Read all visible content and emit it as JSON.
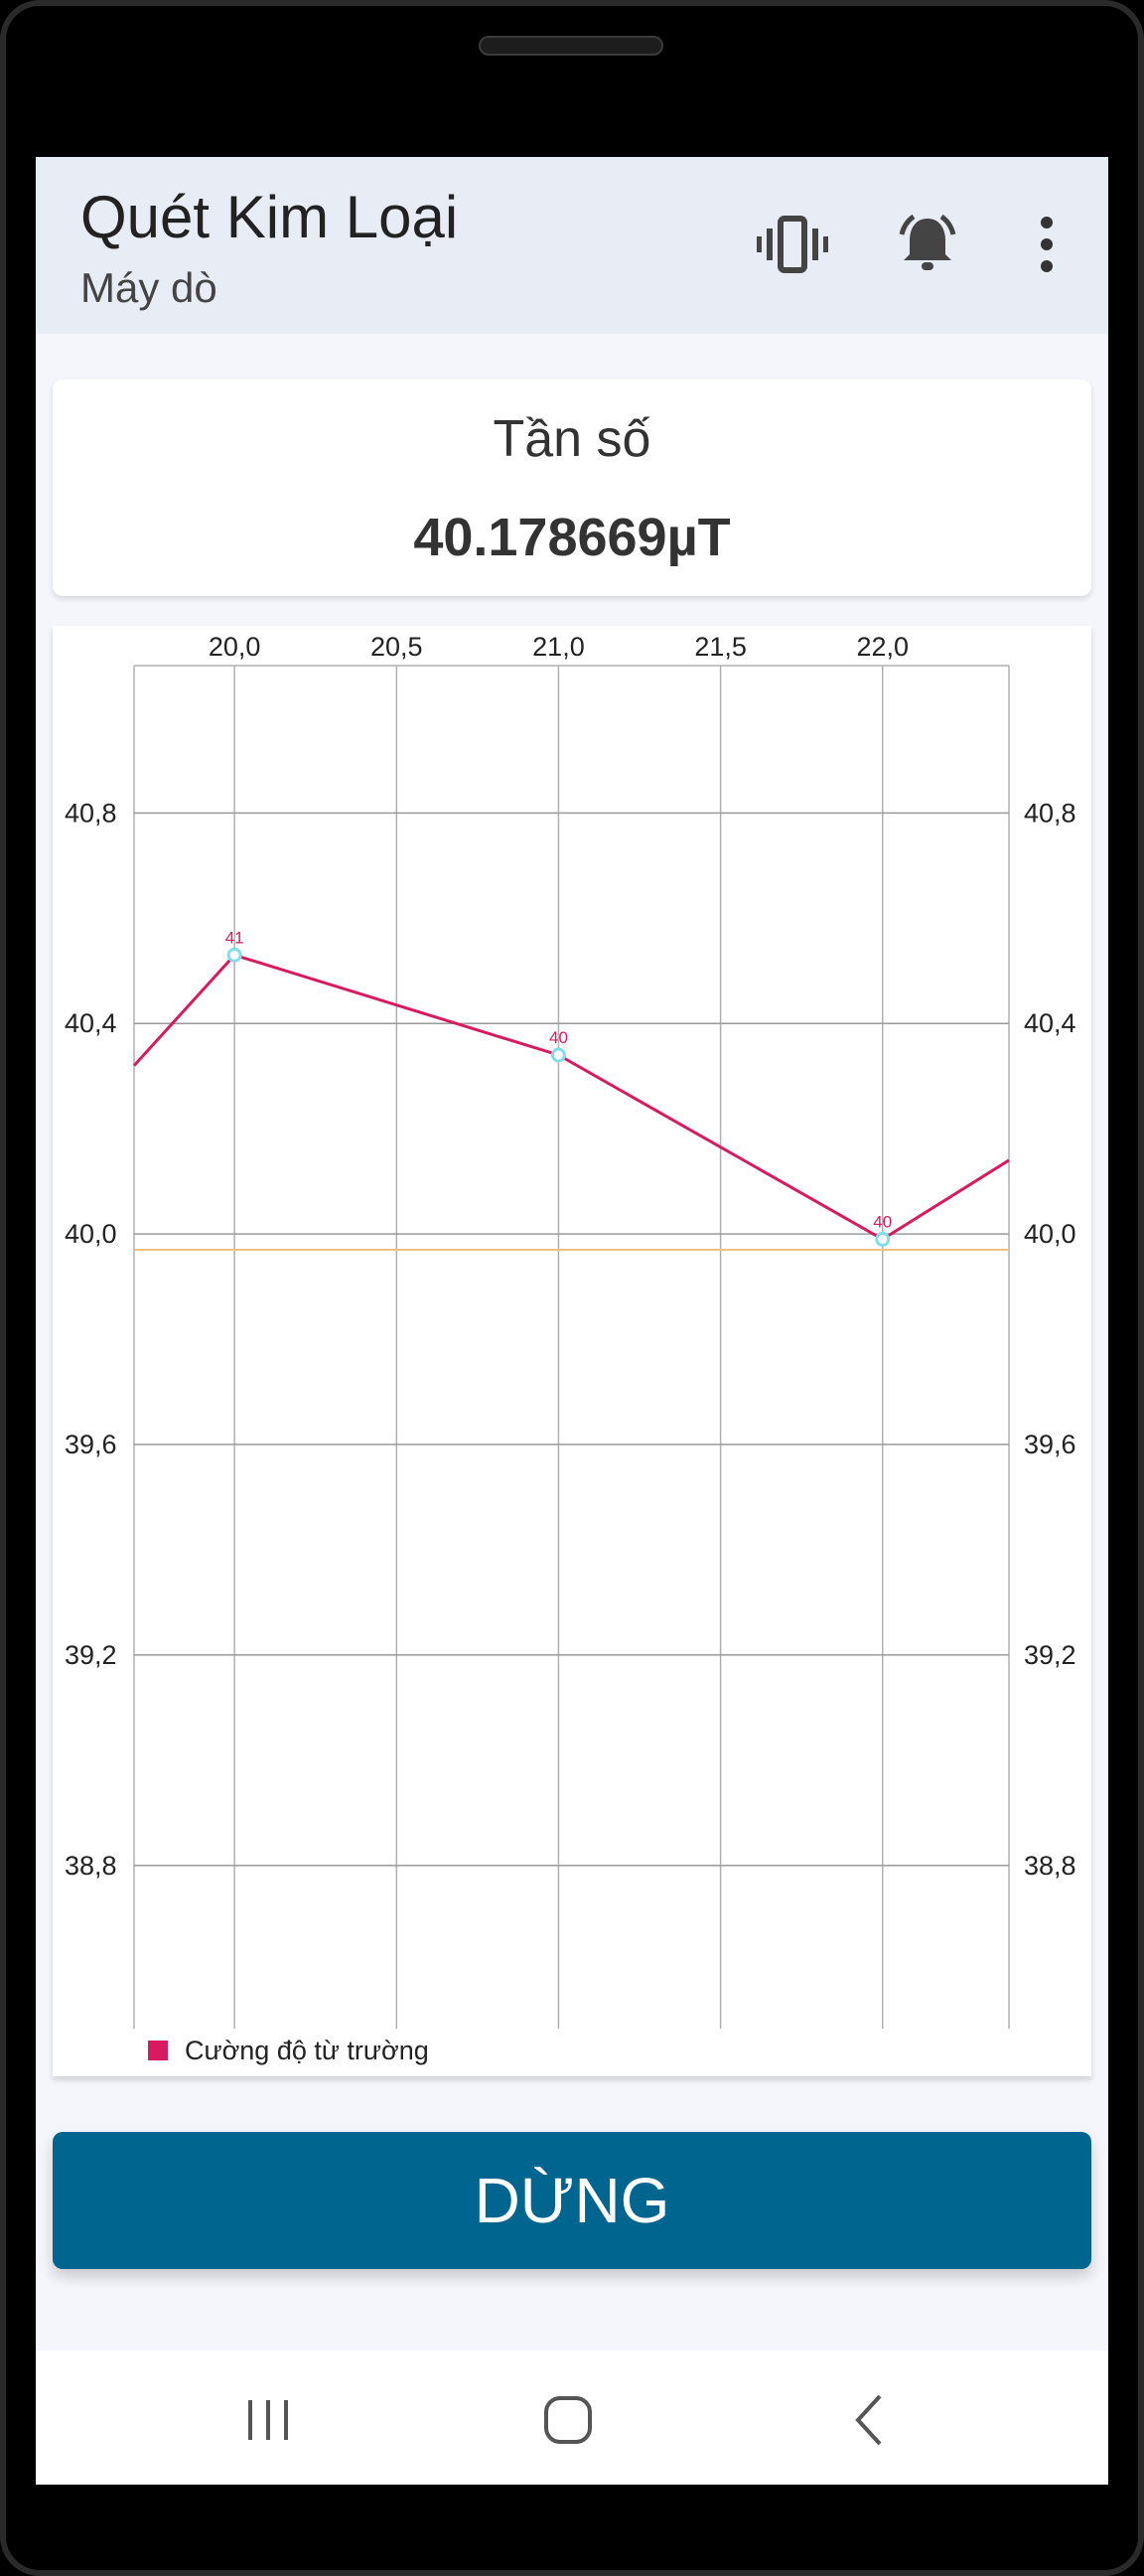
{
  "app": {
    "title": "Quét Kim Loại",
    "subtitle": "Máy dò"
  },
  "toolbar": {
    "icons": [
      "vibrate-icon",
      "alarm-bell-icon",
      "more-vert-icon"
    ]
  },
  "reading": {
    "label": "Tần số",
    "value": "40.178669µT"
  },
  "chart_data": {
    "type": "line",
    "x_tick_labels": [
      "20,0",
      "20,5",
      "21,0",
      "21,5",
      "22,0"
    ],
    "y_tick_labels": [
      "40,8",
      "40,4",
      "40,0",
      "39,6",
      "39,2",
      "38,8"
    ],
    "xlim": [
      19.69,
      22.39
    ],
    "ylim": [
      38.49,
      41.08
    ],
    "grid": true,
    "legend_position": "bottom-left",
    "series": [
      {
        "name": "Cường độ từ trường",
        "color": "#d81b60",
        "points": [
          {
            "x": 19.69,
            "y": 40.32
          },
          {
            "x": 20.0,
            "y": 40.53,
            "label": "41"
          },
          {
            "x": 21.0,
            "y": 40.34,
            "label": "40"
          },
          {
            "x": 22.0,
            "y": 39.99,
            "label": "40"
          },
          {
            "x": 22.39,
            "y": 40.14
          }
        ]
      }
    ],
    "reference_line": {
      "y": 39.97,
      "color": "#f0c080"
    },
    "marker_color": "#80deea"
  },
  "actions": {
    "stop_label": "DỪNG"
  },
  "navbar": {
    "icons": [
      "recent-apps-icon",
      "home-icon",
      "back-icon"
    ]
  }
}
